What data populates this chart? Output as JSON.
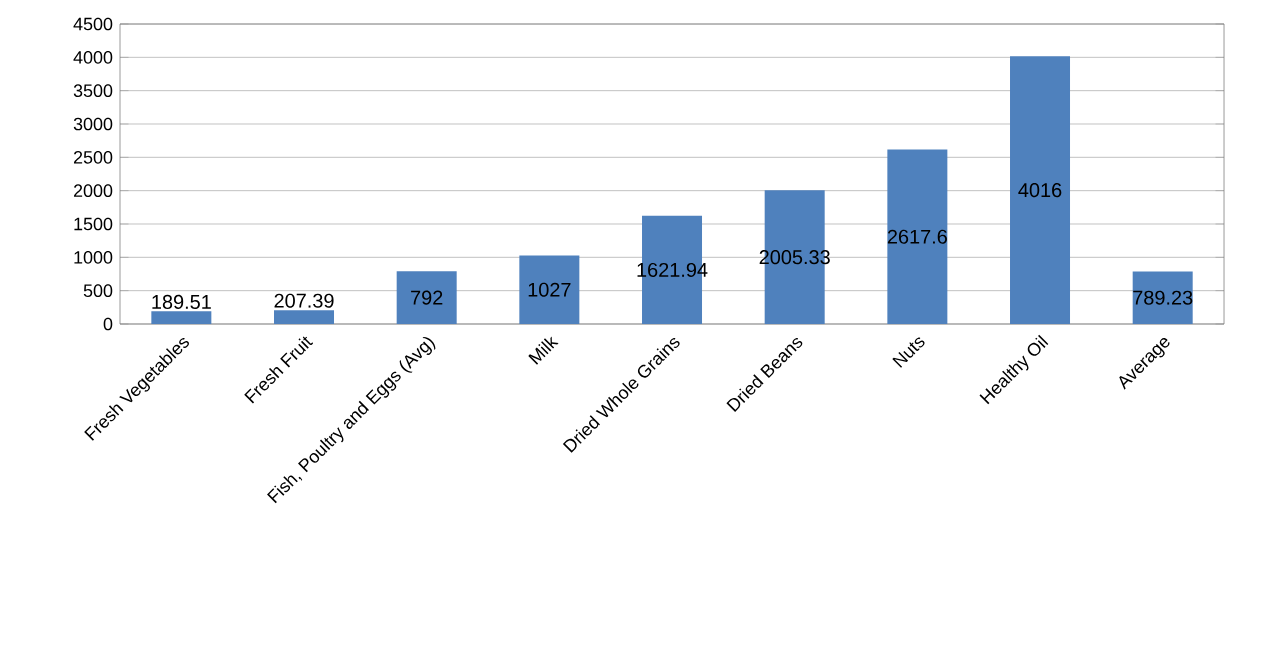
{
  "chart_data": {
    "type": "bar",
    "categories": [
      "Fresh Vegetables",
      "Fresh Fruit",
      "Fish, Poultry and Eggs (Avg)",
      "Milk",
      "Dried Whole Grains",
      "Dried Beans",
      "Nuts",
      "Healthy Oil",
      "Average"
    ],
    "values": [
      189.51,
      207.39,
      792,
      1027,
      1621.94,
      2005.33,
      2617.6,
      4016,
      789.23
    ],
    "color": "#4f81bd",
    "ylim": [
      0,
      4500
    ],
    "yticks": [
      0,
      500,
      1000,
      1500,
      2000,
      2500,
      3000,
      3500,
      4000,
      4500
    ],
    "grid": "y",
    "data_labels": true
  }
}
